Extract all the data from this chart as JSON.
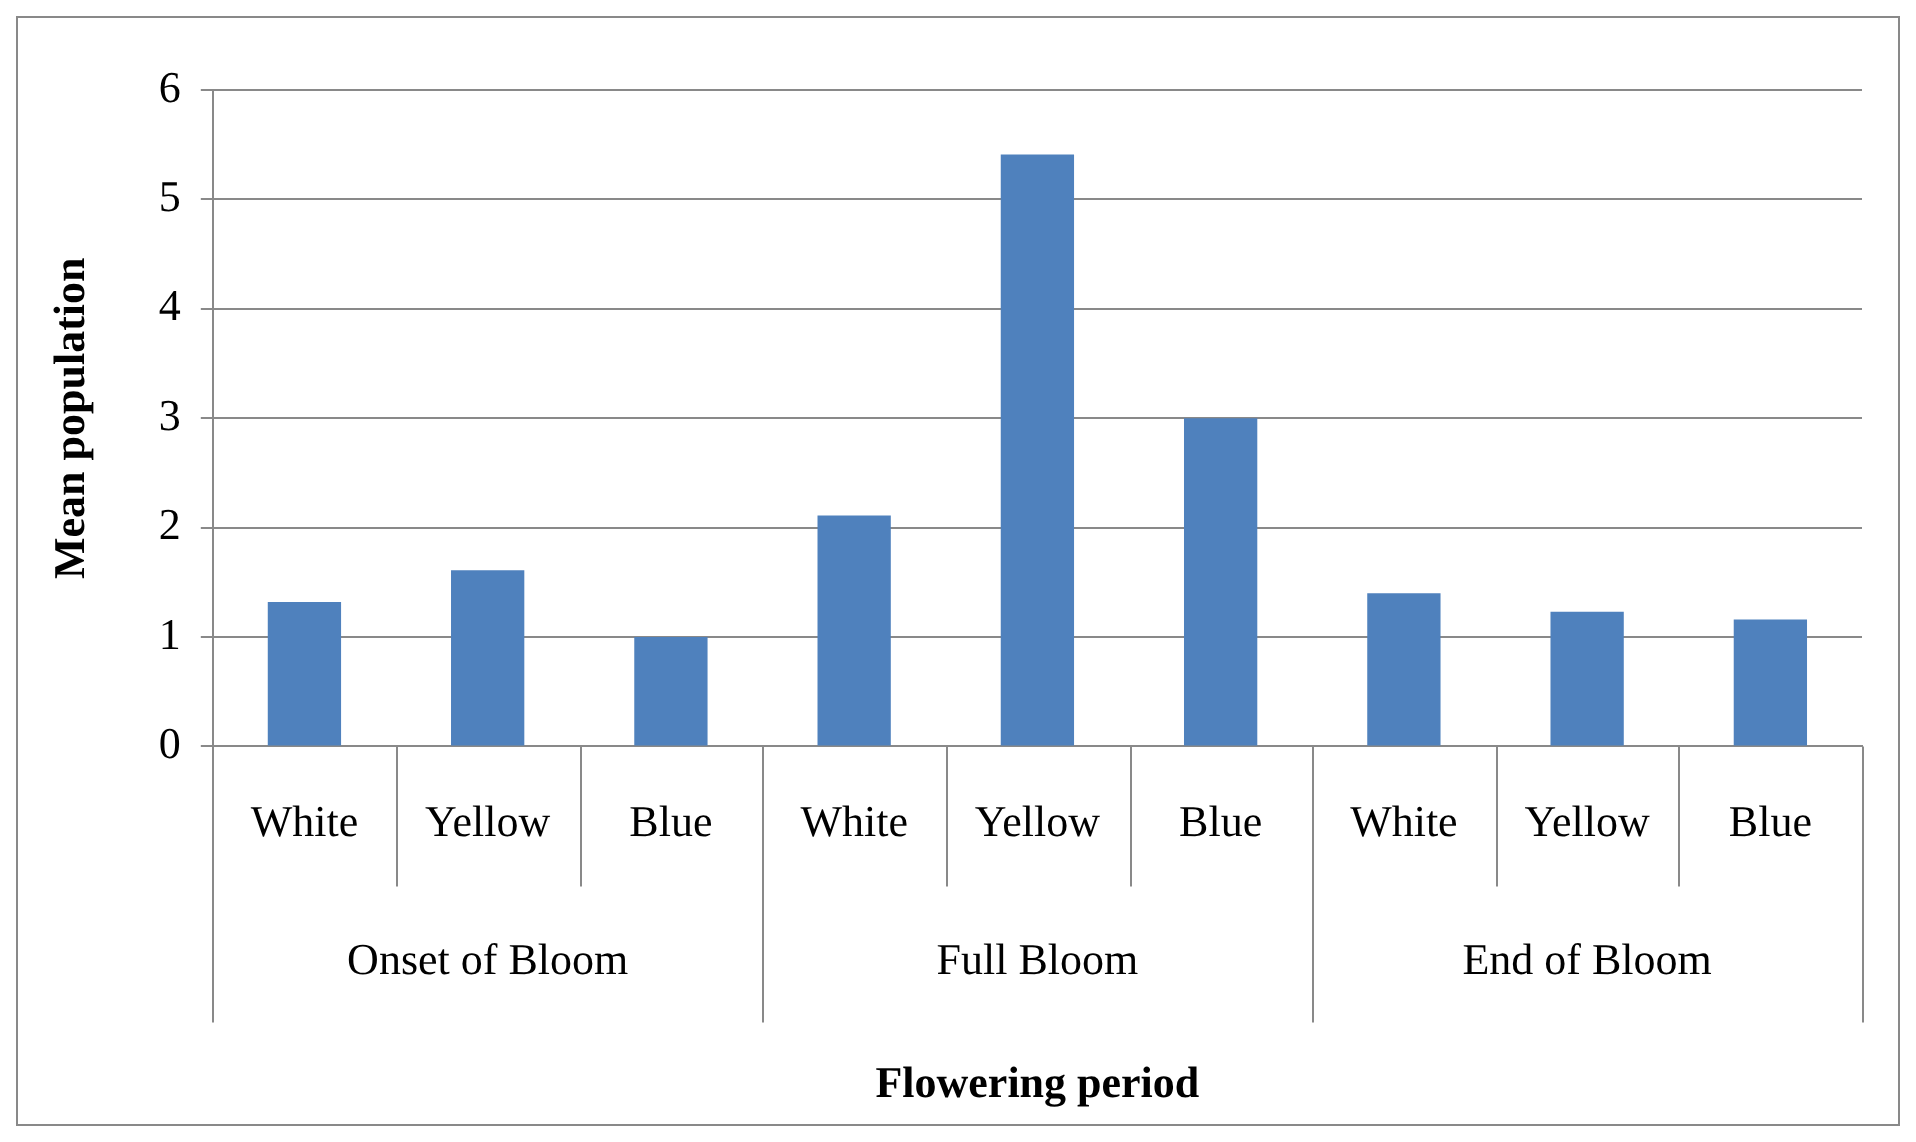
{
  "chart_data": {
    "type": "bar",
    "xlabel": "Flowering period",
    "ylabel": "Mean population",
    "categories": [
      "White",
      "Yellow",
      "Blue",
      "White",
      "Yellow",
      "Blue",
      "White",
      "Yellow",
      "Blue"
    ],
    "values": [
      1.32,
      1.61,
      1.0,
      2.11,
      5.41,
      3.0,
      1.4,
      1.23,
      1.16
    ],
    "color": "#4f81bd",
    "ylim": [
      0,
      6
    ],
    "yticks": [
      0,
      1,
      2,
      3,
      4,
      5,
      6
    ],
    "grid": "y",
    "legend": false,
    "annotations": [
      "Onset of Bloom",
      "Full Bloom",
      "End of Bloom"
    ]
  }
}
